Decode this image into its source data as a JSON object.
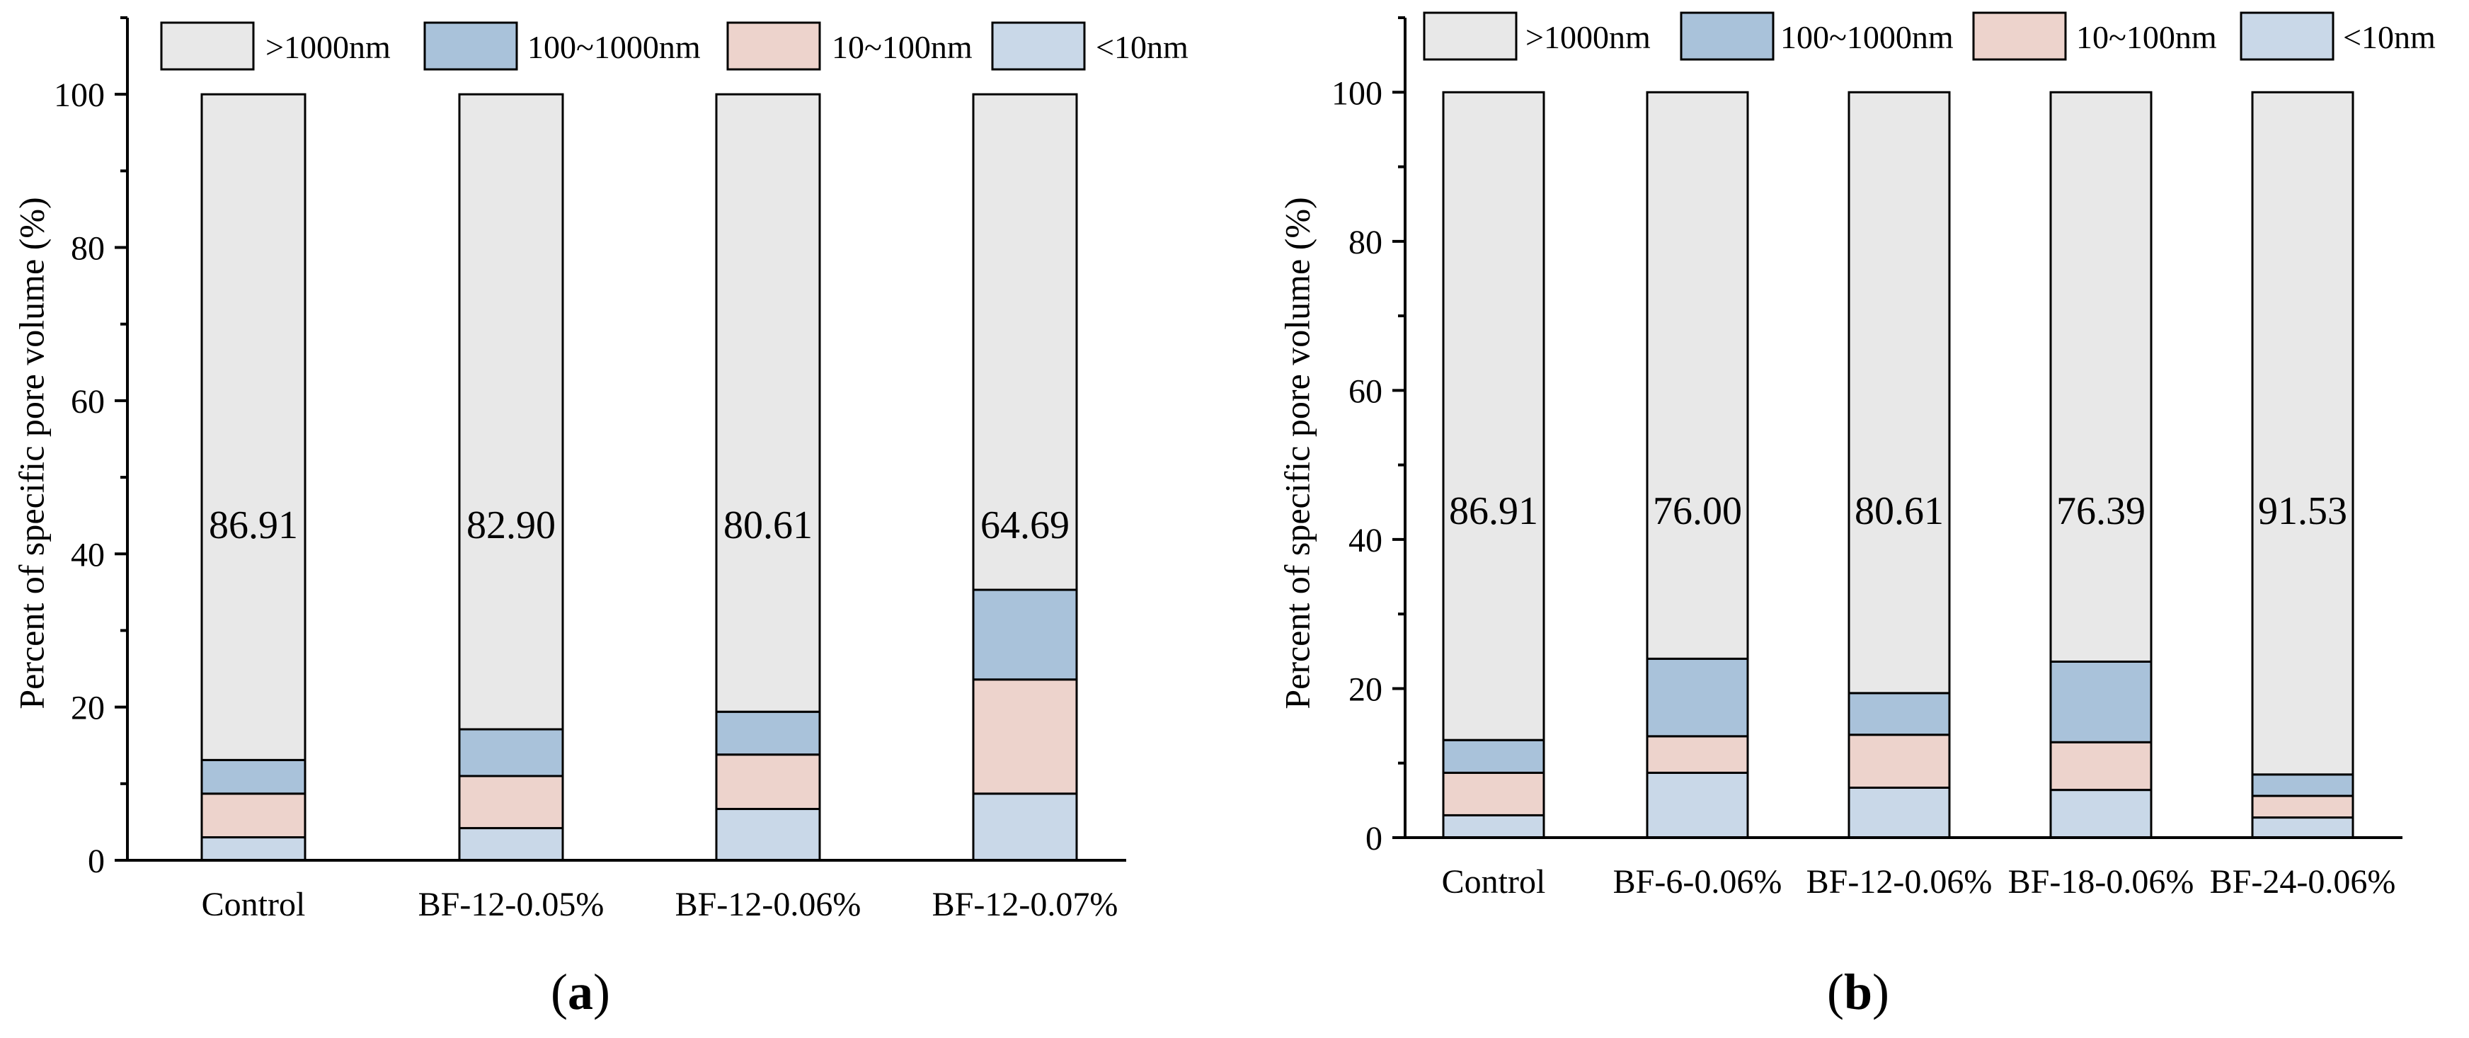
{
  "chart_data": [
    {
      "type": "bar",
      "stacked": true,
      "panel": "a",
      "ylabel": "Percent of specific pore volume (%)",
      "xlabel": "",
      "ylim": [
        0,
        110
      ],
      "yticks": [
        0,
        20,
        40,
        60,
        80,
        100
      ],
      "legend_position": "top",
      "categories": [
        "Control",
        "BF-12-0.05%",
        "BF-12-0.06%",
        "BF-12-0.07%"
      ],
      "series": [
        {
          "name": "<10nm",
          "color": "#c9d8e8",
          "values": [
            3.0,
            4.2,
            6.7,
            8.7
          ]
        },
        {
          "name": "10~100nm",
          "color": "#edd3cc",
          "values": [
            5.7,
            6.8,
            7.1,
            14.9
          ]
        },
        {
          "name": "100~1000nm",
          "color": "#a9c2da",
          "values": [
            4.39,
            6.1,
            5.59,
            11.71
          ]
        },
        {
          "name": ">1000nm",
          "color": "#e8e8e8",
          "values": [
            86.91,
            82.9,
            80.61,
            64.69
          ]
        }
      ],
      "labels": [
        "86.91",
        "82.90",
        "80.61",
        "64.69"
      ]
    },
    {
      "type": "bar",
      "stacked": true,
      "panel": "b",
      "ylabel": "Percent of specific pore volume (%)",
      "xlabel": "",
      "ylim": [
        0,
        110
      ],
      "yticks": [
        0,
        20,
        40,
        60,
        80,
        100
      ],
      "legend_position": "top",
      "categories": [
        "Control",
        "BF-6-0.06%",
        "BF-12-0.06%",
        "BF-18-0.06%",
        "BF-24-0.06%"
      ],
      "series": [
        {
          "name": "<10nm",
          "color": "#c9d8e8",
          "values": [
            3.0,
            8.7,
            6.7,
            6.4,
            2.7
          ]
        },
        {
          "name": "10~100nm",
          "color": "#edd3cc",
          "values": [
            5.7,
            4.9,
            7.1,
            6.4,
            2.9
          ]
        },
        {
          "name": "100~1000nm",
          "color": "#a9c2da",
          "values": [
            4.39,
            10.4,
            5.59,
            10.81,
            2.87
          ]
        },
        {
          "name": ">1000nm",
          "color": "#e8e8e8",
          "values": [
            86.91,
            76.0,
            80.61,
            76.39,
            91.53
          ]
        }
      ],
      "labels": [
        "86.91",
        "76.00",
        "80.61",
        "76.39",
        "91.53"
      ]
    }
  ],
  "legend": [
    {
      "label": ">1000nm",
      "color": "#e8e8e8"
    },
    {
      "label": "100~1000nm",
      "color": "#a9c2da"
    },
    {
      "label": "10~100nm",
      "color": "#edd3cc"
    },
    {
      "label": "<10nm",
      "color": "#c9d8e8"
    }
  ],
  "panel_labels": {
    "a": "a",
    "b": "b"
  }
}
